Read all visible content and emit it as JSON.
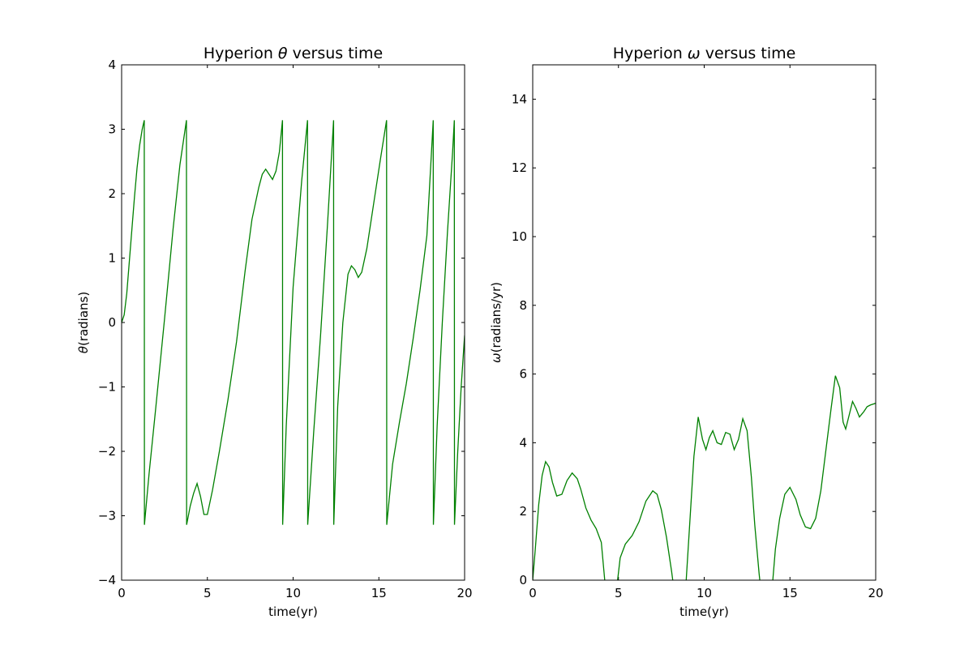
{
  "chart_data": [
    {
      "type": "line",
      "title": "Hyperion θ versus time",
      "title_parts": [
        "Hyperion ",
        "θ",
        " versus time"
      ],
      "xlabel": "time(yr)",
      "ylabel": "θ(radians)",
      "ylabel_parts": [
        "θ",
        "(radians)"
      ],
      "xlim": [
        0,
        20
      ],
      "ylim": [
        -4,
        4
      ],
      "xticks": [
        0,
        5,
        10,
        15,
        20
      ],
      "xtick_labels": [
        "0",
        "5",
        "10",
        "15",
        "20"
      ],
      "yticks": [
        -4,
        -3,
        -2,
        -1,
        0,
        1,
        2,
        3,
        4
      ],
      "ytick_labels": [
        "−4",
        "−3",
        "−2",
        "−1",
        "0",
        "1",
        "2",
        "3",
        "4"
      ],
      "grid": false,
      "series": [
        {
          "color": "#008000",
          "x": [
            0.0,
            0.15,
            0.3,
            0.45,
            0.6,
            0.75,
            0.9,
            1.05,
            1.2,
            1.32,
            1.33,
            1.6,
            2.0,
            2.5,
            3.0,
            3.4,
            3.78,
            3.79,
            4.0,
            4.2,
            4.4,
            4.6,
            4.8,
            5.0,
            5.3,
            5.7,
            6.2,
            6.7,
            7.2,
            7.6,
            8.0,
            8.2,
            8.4,
            8.6,
            8.8,
            9.0,
            9.2,
            9.38,
            9.39,
            9.6,
            10.0,
            10.5,
            10.84,
            10.85,
            11.2,
            11.6,
            12.0,
            12.36,
            12.37,
            12.6,
            12.9,
            13.2,
            13.4,
            13.6,
            13.8,
            14.0,
            14.3,
            14.7,
            15.1,
            15.45,
            15.46,
            15.8,
            16.2,
            16.6,
            17.0,
            17.4,
            17.8,
            18.17,
            18.18,
            18.4,
            18.7,
            19.0,
            19.3,
            19.4,
            19.41,
            19.6,
            19.8,
            20.0
          ],
          "y": [
            0.0,
            0.12,
            0.45,
            0.95,
            1.45,
            1.95,
            2.4,
            2.75,
            3.0,
            3.14,
            -3.14,
            -2.35,
            -1.3,
            0.05,
            1.45,
            2.45,
            3.14,
            -3.14,
            -2.85,
            -2.65,
            -2.5,
            -2.7,
            -2.98,
            -2.98,
            -2.6,
            -2.0,
            -1.2,
            -0.3,
            0.8,
            1.6,
            2.1,
            2.3,
            2.38,
            2.3,
            2.22,
            2.35,
            2.65,
            3.14,
            -3.14,
            -1.6,
            0.55,
            2.2,
            3.14,
            -3.14,
            -1.7,
            -0.2,
            1.5,
            3.14,
            -3.14,
            -1.3,
            0.0,
            0.75,
            0.88,
            0.82,
            0.7,
            0.78,
            1.15,
            1.85,
            2.55,
            3.14,
            -3.14,
            -2.2,
            -1.55,
            -0.95,
            -0.25,
            0.5,
            1.35,
            3.14,
            -3.14,
            -1.6,
            0.0,
            1.4,
            2.65,
            3.14,
            -3.14,
            -2.0,
            -1.0,
            -0.2
          ]
        }
      ]
    },
    {
      "type": "line",
      "title": "Hyperion ω versus time",
      "title_parts": [
        "Hyperion ",
        "ω",
        " versus time"
      ],
      "xlabel": "time(yr)",
      "ylabel": "ω(radians/yr)",
      "ylabel_parts": [
        "ω",
        "(radians/yr)"
      ],
      "xlim": [
        0,
        20
      ],
      "ylim": [
        0,
        15
      ],
      "xticks": [
        0,
        5,
        10,
        15,
        20
      ],
      "xtick_labels": [
        "0",
        "5",
        "10",
        "15",
        "20"
      ],
      "yticks": [
        0,
        2,
        4,
        6,
        8,
        10,
        12,
        14
      ],
      "ytick_labels": [
        "0",
        "2",
        "4",
        "6",
        "8",
        "10",
        "12",
        "14"
      ],
      "grid": false,
      "series": [
        {
          "color": "#008000",
          "x": [
            0.0,
            0.15,
            0.35,
            0.55,
            0.75,
            0.95,
            1.15,
            1.4,
            1.7,
            2.0,
            2.3,
            2.6,
            2.8,
            3.1,
            3.4,
            3.7,
            4.0,
            4.2,
            4.35,
            4.5,
            4.65,
            4.8,
            4.95,
            5.1,
            5.4,
            5.8,
            6.2,
            6.6,
            7.0,
            7.25,
            7.5,
            7.8,
            8.1,
            8.35,
            8.5,
            8.65,
            8.8,
            8.95,
            9.15,
            9.4,
            9.65,
            9.9,
            10.1,
            10.3,
            10.5,
            10.75,
            11.0,
            11.25,
            11.5,
            11.75,
            12.0,
            12.25,
            12.5,
            12.75,
            12.95,
            13.2,
            13.45,
            13.7,
            13.85,
            14.0,
            14.15,
            14.4,
            14.7,
            15.0,
            15.35,
            15.6,
            15.9,
            16.2,
            16.5,
            16.8,
            17.1,
            17.4,
            17.65,
            17.9,
            18.1,
            18.25,
            18.45,
            18.65,
            18.85,
            19.05,
            19.3,
            19.5,
            19.7,
            20.0
          ],
          "y": [
            0.0,
            0.9,
            2.2,
            3.05,
            3.45,
            3.3,
            2.85,
            2.45,
            2.5,
            2.9,
            3.12,
            2.95,
            2.65,
            2.1,
            1.75,
            1.5,
            1.1,
            0.0,
            -0.8,
            -1.2,
            -1.0,
            -0.5,
            0.0,
            0.65,
            1.05,
            1.3,
            1.7,
            2.3,
            2.6,
            2.5,
            2.05,
            1.25,
            0.25,
            -0.7,
            -1.3,
            -1.0,
            -0.3,
            0.0,
            1.6,
            3.6,
            4.75,
            4.1,
            3.8,
            4.15,
            4.35,
            4.0,
            3.95,
            4.3,
            4.25,
            3.8,
            4.1,
            4.7,
            4.35,
            3.0,
            1.6,
            0.2,
            -1.0,
            -1.5,
            -0.6,
            0.0,
            0.9,
            1.8,
            2.5,
            2.7,
            2.35,
            1.9,
            1.55,
            1.5,
            1.8,
            2.6,
            3.8,
            5.0,
            5.95,
            5.6,
            4.6,
            4.4,
            4.8,
            5.2,
            5.0,
            4.75,
            4.9,
            5.05,
            5.1,
            5.15
          ]
        }
      ]
    }
  ]
}
